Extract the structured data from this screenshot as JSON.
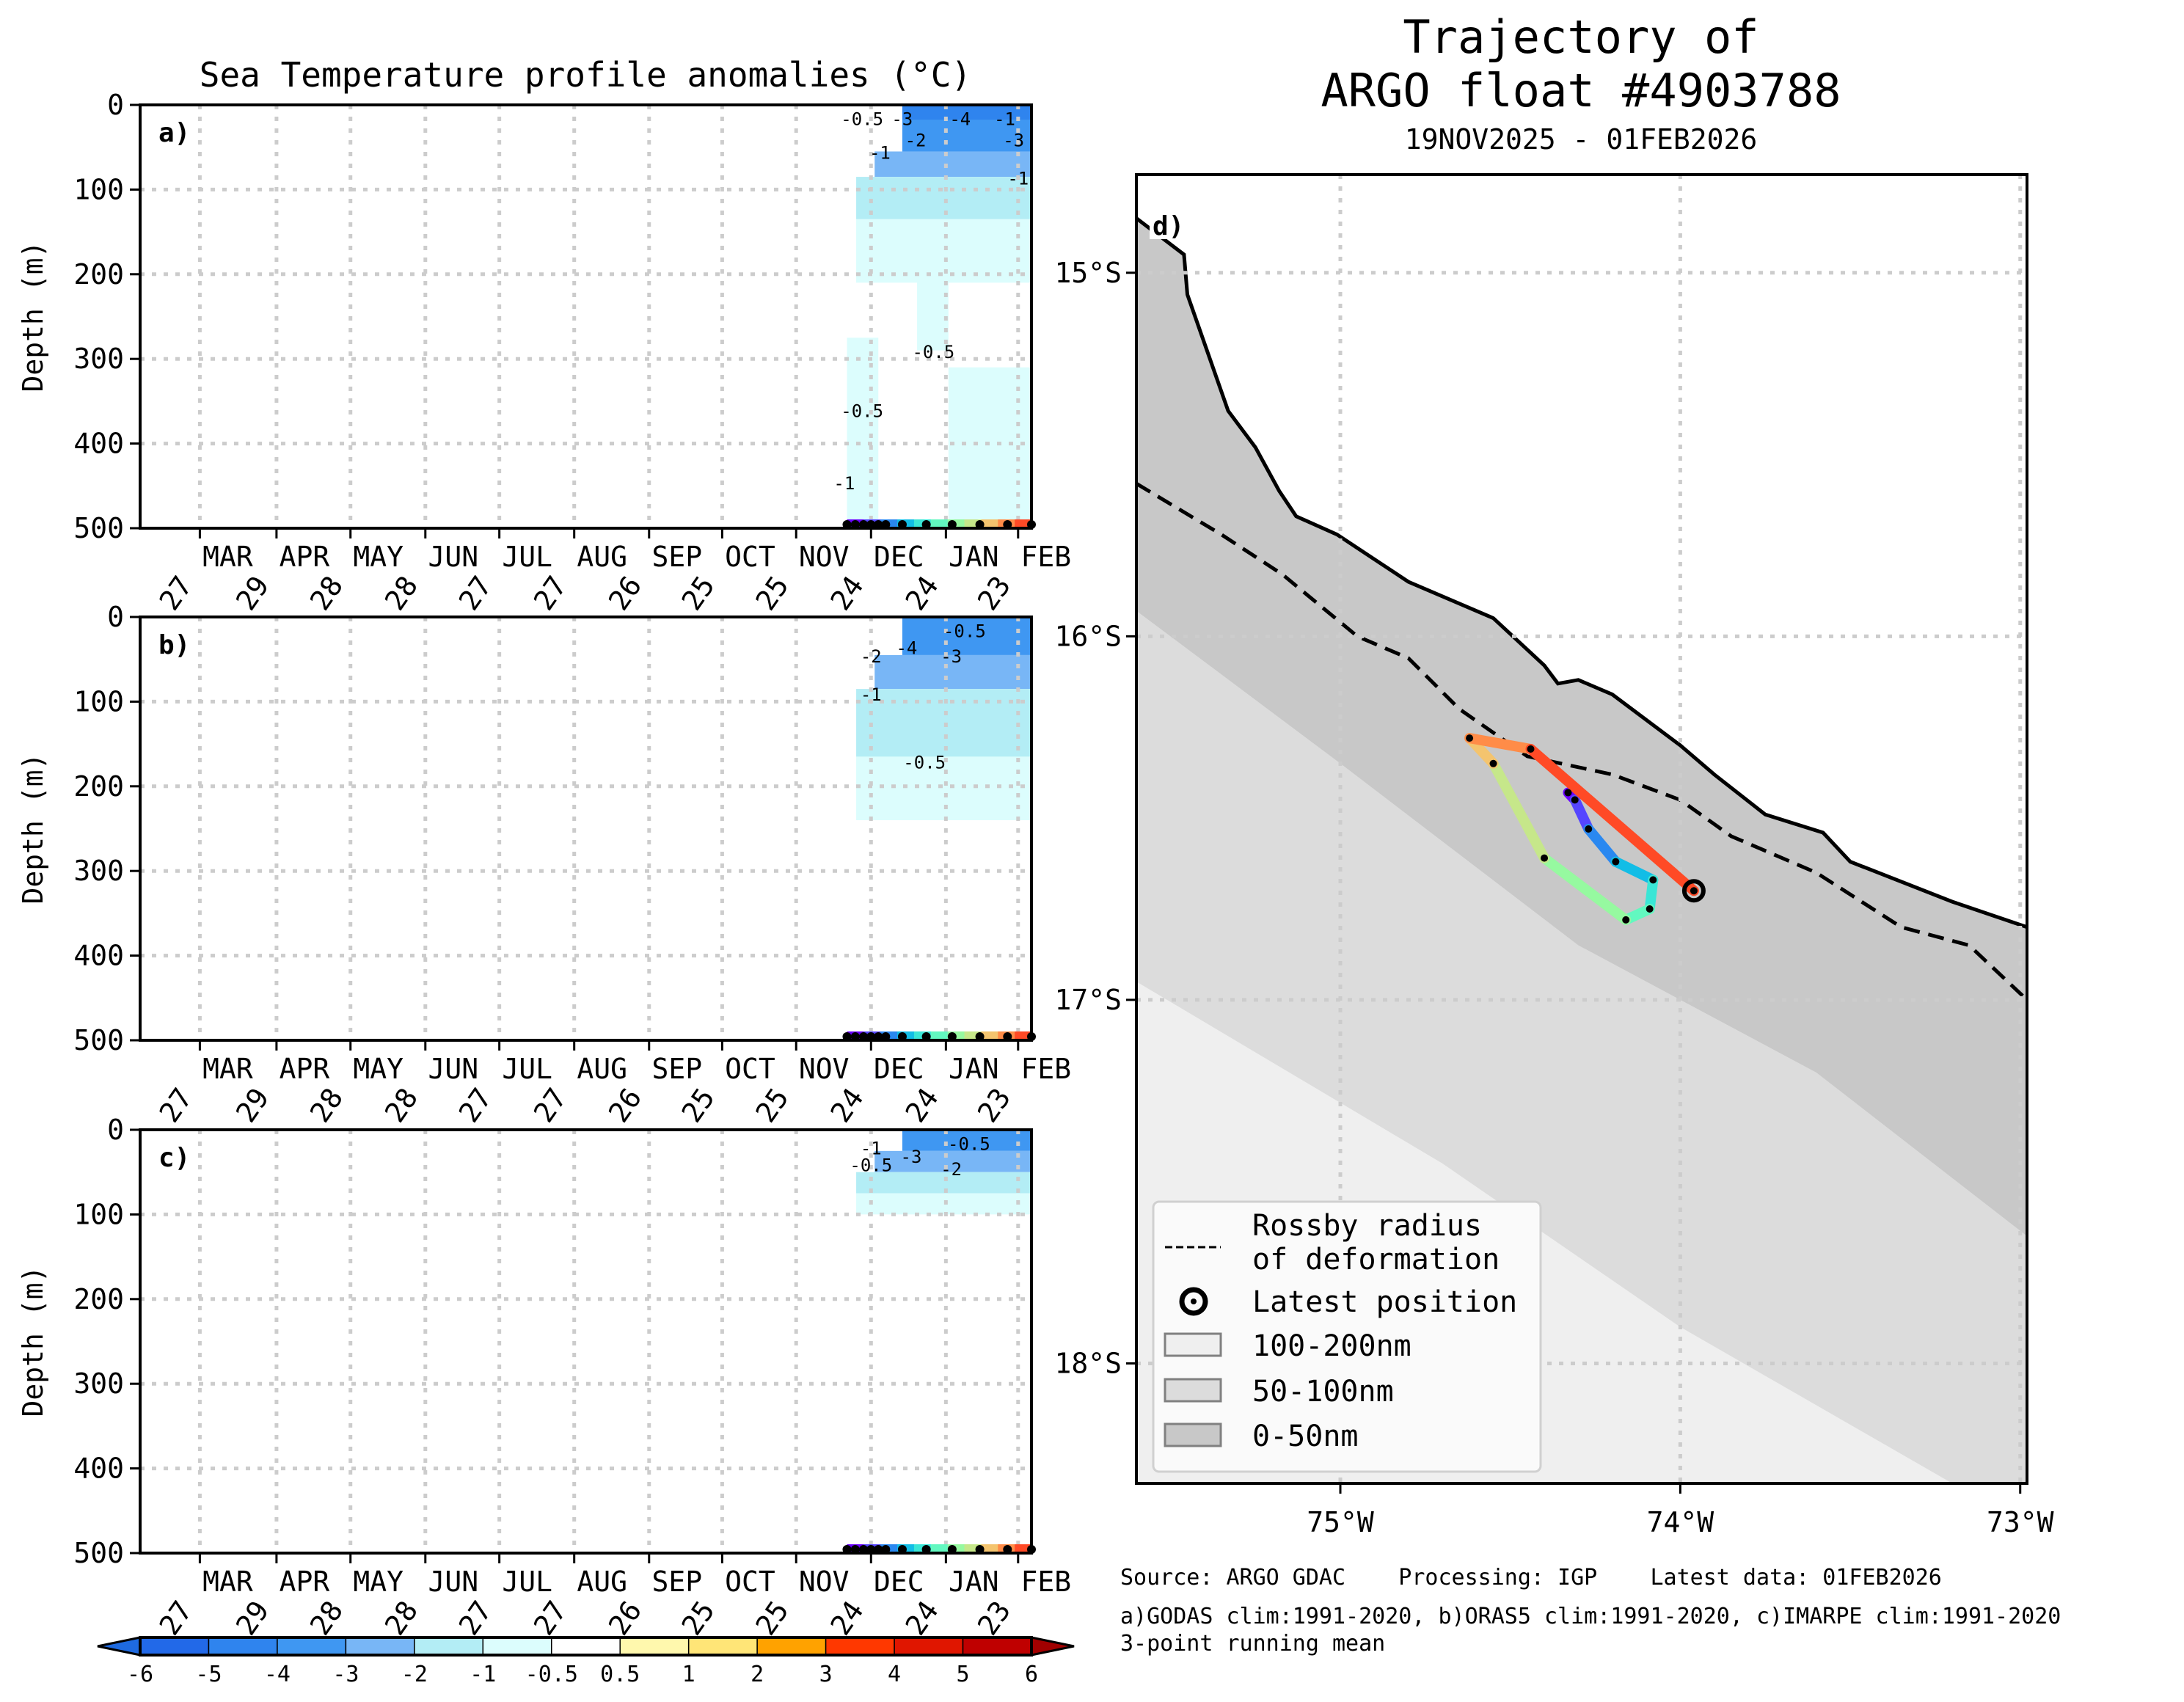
{
  "left_title": "Sea Temperature profile anomalies (°C)",
  "right_title_line1": "Trajectory of",
  "right_title_line2": "ARGO float #4903788",
  "right_subtitle": "19NOV2025 - 01FEB2026",
  "footer": {
    "line1": "Source: ARGO GDAC    Processing: IGP    Latest data: 01FEB2026",
    "line2": "a)GODAS clim:1991-2020, b)ORAS5 clim:1991-2020, c)IMARPE clim:1991-2020",
    "line3": "3-point running mean"
  },
  "chart_data": [
    {
      "type": "heatmap",
      "panel": "a)",
      "title": "Sea Temperature profile anomalies (°C)",
      "ylabel": "Depth (m)",
      "ylim": [
        500,
        0
      ],
      "yticks": [
        "0",
        "100",
        "200",
        "300",
        "400",
        "500"
      ],
      "xticks_month": [
        "MAR",
        "APR",
        "MAY",
        "JUN",
        "JUL",
        "AUG",
        "SEP",
        "OCT",
        "NOV",
        "DEC",
        "JAN",
        "FEB"
      ],
      "xticks_day": [
        "27",
        "29",
        "28",
        "28",
        "27",
        "27",
        "26",
        "25",
        "25",
        "24",
        "24",
        "23"
      ],
      "data_start": "19NOV2025",
      "data_end": "01FEB2026",
      "contour_labels": [
        "-0.5",
        "-3",
        "-4",
        "-1",
        "-2",
        "-1",
        "-3",
        "-1",
        "-0.5",
        "-0.5",
        "-1"
      ],
      "summary": "Cold anomalies of -3 to -4 °C in top ~50 m from mid-Dec to Feb, -1 to -2 °C down to ~120 m, weak -0.5 to -1 °C patches at 250-500 m"
    },
    {
      "type": "heatmap",
      "panel": "b)",
      "ylabel": "Depth (m)",
      "ylim": [
        500,
        0
      ],
      "yticks": [
        "0",
        "100",
        "200",
        "300",
        "400",
        "500"
      ],
      "xticks_month": [
        "MAR",
        "APR",
        "MAY",
        "JUN",
        "JUL",
        "AUG",
        "SEP",
        "OCT",
        "NOV",
        "DEC",
        "JAN",
        "FEB"
      ],
      "xticks_day": [
        "27",
        "29",
        "28",
        "28",
        "27",
        "27",
        "26",
        "25",
        "25",
        "24",
        "24",
        "23"
      ],
      "contour_labels": [
        "-0.5",
        "-4",
        "-2",
        "-3",
        "-1",
        "-0.5"
      ],
      "summary": "Cold anomalies up to -4 °C near surface mid-Dec, -1 °C to ~150 m, -0.5 °C to ~240 m"
    },
    {
      "type": "heatmap",
      "panel": "c)",
      "ylabel": "Depth (m)",
      "ylim": [
        500,
        0
      ],
      "yticks": [
        "0",
        "100",
        "200",
        "300",
        "400",
        "500"
      ],
      "xticks_month": [
        "MAR",
        "APR",
        "MAY",
        "JUN",
        "JUL",
        "AUG",
        "SEP",
        "OCT",
        "NOV",
        "DEC",
        "JAN",
        "FEB"
      ],
      "xticks_day": [
        "27",
        "29",
        "28",
        "28",
        "27",
        "27",
        "26",
        "25",
        "25",
        "24",
        "24",
        "23"
      ],
      "contour_labels": [
        "-1",
        "-0.5",
        "-3",
        "-0.5",
        "-2"
      ],
      "summary": "Cold anomalies up to -3 °C in top 40 m, -0.5 °C to ~90 m"
    },
    {
      "type": "scatter",
      "panel": "d)",
      "title": "Trajectory of ARGO float #4903788",
      "subtitle": "19NOV2025 - 01FEB2026",
      "xlim": [
        -75.6,
        -72.98
      ],
      "ylim": [
        -18.33,
        -14.73
      ],
      "xticks": [
        "75°W",
        "74°W",
        "73°W"
      ],
      "yticks": [
        "15°S",
        "16°S",
        "17°S",
        "18°S"
      ],
      "trajectory": [
        {
          "lon": -74.33,
          "lat": -16.43
        },
        {
          "lon": -74.31,
          "lat": -16.45
        },
        {
          "lon": -74.27,
          "lat": -16.53
        },
        {
          "lon": -74.19,
          "lat": -16.62
        },
        {
          "lon": -74.08,
          "lat": -16.67
        },
        {
          "lon": -74.09,
          "lat": -16.75
        },
        {
          "lon": -74.16,
          "lat": -16.78
        },
        {
          "lon": -74.4,
          "lat": -16.61
        },
        {
          "lon": -74.55,
          "lat": -16.35
        },
        {
          "lon": -74.62,
          "lat": -16.28
        },
        {
          "lon": -74.44,
          "lat": -16.31
        },
        {
          "lon": -73.96,
          "lat": -16.7
        }
      ],
      "track_colors": [
        "#6a00ff",
        "#5545ff",
        "#2a88f0",
        "#12bde6",
        "#3ae6d6",
        "#62f8c0",
        "#96f9a0",
        "#c6e78a",
        "#f4c46e",
        "#ff8c48",
        "#ff4a26"
      ],
      "latest_position": {
        "lon": -73.96,
        "lat": -16.7
      },
      "legend": [
        {
          "label": "Rossby radius\nof deformation",
          "kind": "dashed-line"
        },
        {
          "label": "Latest position",
          "kind": "target-marker"
        },
        {
          "label": "100-200nm",
          "kind": "patch",
          "color": "#efefef"
        },
        {
          "label": "50-100nm",
          "kind": "patch",
          "color": "#dcdcdc"
        },
        {
          "label": "0-50nm",
          "kind": "patch",
          "color": "#c8c8c8"
        }
      ],
      "legend_placement": "lower-left"
    }
  ],
  "colorbar": {
    "ticks": [
      "-6",
      "-5",
      "-4",
      "-3",
      "-2",
      "-1",
      "-0.5",
      "0.5",
      "1",
      "2",
      "3",
      "4",
      "5",
      "6"
    ],
    "colors": [
      "#2269e8",
      "#2f84ee",
      "#3f97f2",
      "#78b6f6",
      "#b3edf5",
      "#dcfdfd",
      "#ffffff",
      "#fff8ad",
      "#ffe577",
      "#ffa200",
      "#ff3800",
      "#e01600",
      "#bf0000"
    ],
    "under_color": "#1e6ae0",
    "over_color": "#a10000"
  }
}
